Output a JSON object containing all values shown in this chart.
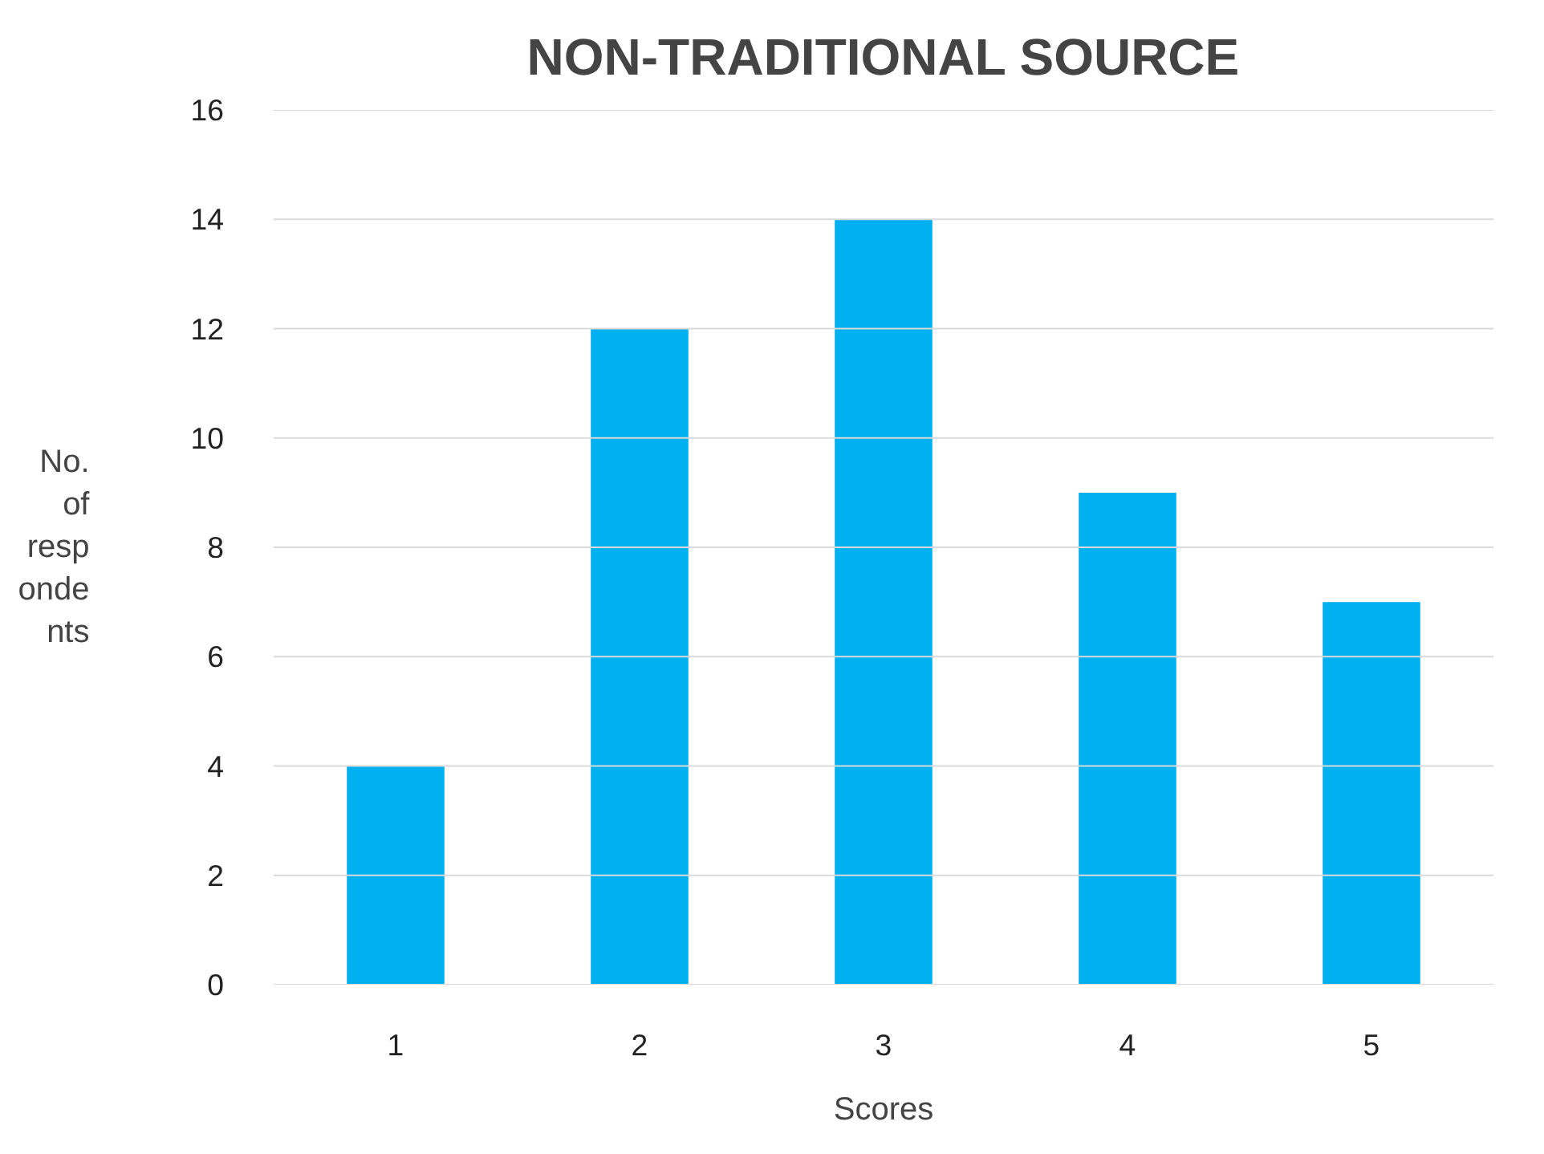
{
  "chart_data": {
    "type": "bar",
    "title": "NON-TRADITIONAL SOURCE",
    "xlabel": "Scores",
    "ylabel": "No. of respondents",
    "categories": [
      "1",
      "2",
      "3",
      "4",
      "5"
    ],
    "values": [
      4,
      12,
      14,
      9,
      7
    ],
    "color": "#00b0f0",
    "ylim": [
      0,
      16
    ],
    "yticks": [
      0,
      2,
      4,
      6,
      8,
      10,
      12,
      14,
      16
    ],
    "grid": "y"
  }
}
